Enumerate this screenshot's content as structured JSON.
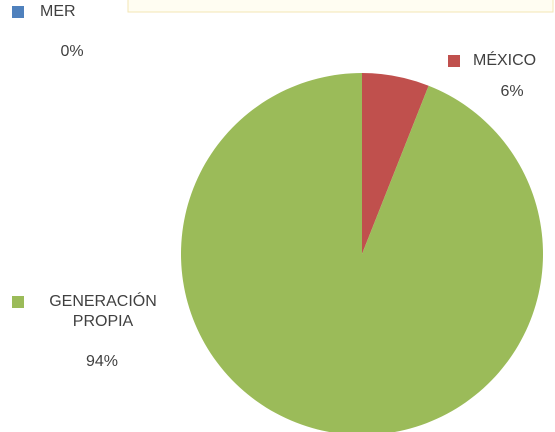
{
  "chart_data": {
    "type": "pie",
    "categories": [
      "MER",
      "MÉXICO",
      "GENERACIÓN PROPIA"
    ],
    "values": [
      0,
      6,
      94
    ],
    "value_labels": [
      "0%",
      "6%",
      "94%"
    ],
    "colors": [
      "#4f81bd",
      "#c0504d",
      "#9bbb59"
    ]
  }
}
